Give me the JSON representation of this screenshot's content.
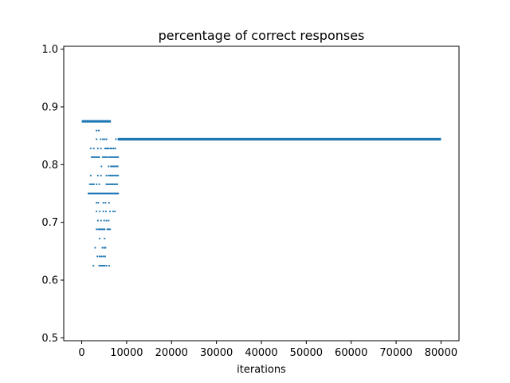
{
  "chart_data": {
    "type": "scatter",
    "title": "percentage of correct responses",
    "xlabel": "iterations",
    "ylabel": "",
    "xlim": [
      -4000,
      84000
    ],
    "ylim": [
      0.495,
      1.005
    ],
    "xticks": [
      0,
      10000,
      20000,
      30000,
      40000,
      50000,
      60000,
      70000,
      80000
    ],
    "xtick_labels": [
      "0",
      "10000",
      "20000",
      "30000",
      "40000",
      "50000",
      "60000",
      "70000",
      "80000"
    ],
    "yticks": [
      0.5,
      0.6,
      0.7,
      0.8,
      0.9,
      1.0
    ],
    "ytick_labels": [
      "0.5",
      "0.6",
      "0.7",
      "0.8",
      "0.9",
      "1.0"
    ],
    "grid": false,
    "marker_color": "#1f77b4",
    "plateaus": [
      {
        "y": 0.875,
        "x_start": 0,
        "x_end": 6500
      },
      {
        "y": 0.844,
        "x_start": 8000,
        "x_end": 80000
      }
    ],
    "scatter_points": [
      {
        "y": 0.859,
        "x": [
          3300,
          3800
        ]
      },
      {
        "y": 0.844,
        "x": [
          3300,
          4200,
          4700,
          5100,
          5500,
          7600
        ]
      },
      {
        "y": 0.828,
        "x": [
          2000,
          2700,
          3600,
          4300,
          5200,
          5500,
          5700,
          6000,
          6400,
          6700,
          7100,
          7500
        ]
      },
      {
        "y": 0.813,
        "x": [
          2200,
          2500,
          2800,
          3100,
          3400,
          3700,
          3900,
          4700,
          5000,
          5300,
          5600,
          6000,
          6300,
          6600,
          6900,
          7200,
          7500,
          7800,
          8100
        ]
      },
      {
        "y": 0.797,
        "x": [
          4400,
          6000,
          6500,
          6800,
          7100,
          7400,
          7700,
          8000
        ]
      },
      {
        "y": 0.781,
        "x": [
          2000,
          3600,
          4300,
          5500,
          6000,
          6300,
          6600,
          6900,
          7200,
          7500,
          7800,
          8100
        ]
      },
      {
        "y": 0.766,
        "x": [
          1800,
          2100,
          2400,
          2700,
          3300,
          3900,
          5500,
          5800,
          6100,
          6400,
          6700,
          7000,
          7300,
          7600,
          7900
        ]
      },
      {
        "y": 0.75,
        "x": [
          1500,
          1800,
          2100,
          2400,
          2700,
          3000,
          3300,
          3600,
          3900,
          4200,
          4500,
          4800,
          5100,
          5400,
          5700,
          6000,
          6300,
          6600,
          6900,
          7200,
          7500,
          7800,
          8100
        ]
      },
      {
        "y": 0.734,
        "x": [
          3300,
          3700,
          4800,
          5300,
          6100
        ]
      },
      {
        "y": 0.719,
        "x": [
          3300,
          4000,
          4800,
          5400,
          6300,
          7000,
          7400
        ]
      },
      {
        "y": 0.703,
        "x": [
          3600,
          4300,
          5000,
          5500,
          6000
        ]
      },
      {
        "y": 0.688,
        "x": [
          3300,
          3700,
          4000,
          4300,
          4600,
          4900,
          5100,
          5700,
          6000,
          6300
        ]
      },
      {
        "y": 0.672,
        "x": [
          4000,
          5100
        ]
      },
      {
        "y": 0.656,
        "x": [
          3000,
          4600,
          5000,
          5300
        ]
      },
      {
        "y": 0.641,
        "x": [
          3500,
          4000,
          4400,
          4800,
          5200
        ]
      },
      {
        "y": 0.625,
        "x": [
          2600,
          3900,
          4200,
          4500,
          4800,
          5100,
          5500,
          6100
        ]
      }
    ]
  }
}
